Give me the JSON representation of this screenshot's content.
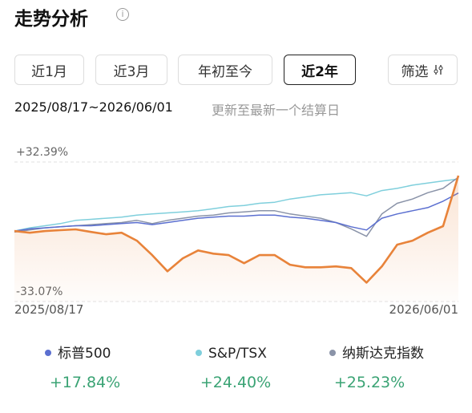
{
  "header": {
    "title": "走势分析"
  },
  "tabs": [
    {
      "label": "近1月"
    },
    {
      "label": "近3月"
    },
    {
      "label": "年初至今"
    },
    {
      "label": "近2年",
      "selected": true
    }
  ],
  "filter": {
    "label": "筛选"
  },
  "range": {
    "dates": "2025/08/17~2026/06/01",
    "note": "更新至最新一个结算日"
  },
  "chart_data": {
    "type": "line",
    "x_labels": [
      "2025/08/17",
      "2026/06/01"
    ],
    "ylim": [
      -33.07,
      32.39
    ],
    "yticks": [
      {
        "value": 32.39,
        "label": "+32.39%"
      },
      {
        "value": -33.07,
        "label": "-33.07%"
      }
    ],
    "grid": true,
    "series": [
      {
        "name": "标普500",
        "color": "#5b6fd0",
        "values": [
          0,
          1,
          1.5,
          2,
          2.5,
          2.5,
          3,
          3.5,
          4,
          3,
          4,
          5,
          6,
          6.5,
          7,
          7,
          7.5,
          7.5,
          6.5,
          6,
          5,
          4,
          2,
          0.5,
          6,
          8,
          9.5,
          11,
          14,
          17.84
        ]
      },
      {
        "name": "S&P/TSX",
        "color": "#7fcfdc",
        "values": [
          0,
          1.5,
          2.5,
          3.5,
          5,
          5.5,
          6,
          6.5,
          7.5,
          8,
          8.5,
          9,
          9.5,
          10.5,
          11.5,
          12,
          13,
          13.5,
          15,
          16,
          17,
          17.5,
          18,
          16.5,
          19,
          20,
          21.5,
          22.5,
          23.5,
          24.4
        ]
      },
      {
        "name": "纳斯达克指数",
        "color": "#8a93a8",
        "values": [
          -0.5,
          0.5,
          1.5,
          2,
          2.5,
          3,
          3.5,
          4,
          5,
          3.5,
          5,
          6,
          7,
          7.5,
          8.5,
          9,
          9.5,
          9.5,
          8,
          7,
          6,
          4,
          1,
          -2.5,
          8,
          13,
          15,
          18,
          20,
          25.23
        ]
      },
      {
        "color": "#e8833a",
        "values": [
          0,
          -0.8,
          0,
          0.4,
          0.8,
          -0.4,
          -1.5,
          -0.8,
          -4.5,
          -11.3,
          -18.9,
          -12.8,
          -9.1,
          -10.6,
          -11.3,
          -15.1,
          -11.3,
          -11.3,
          -15.8,
          -17,
          -17,
          -16.6,
          -17.4,
          -24.2,
          -16.6,
          -6.4,
          -4.5,
          -0.8,
          2.3,
          26
        ]
      }
    ],
    "legend_returns": {
      "values": [
        17.84,
        24.4,
        25.23
      ],
      "value_labels": [
        "+17.84%",
        "+24.40%",
        "+25.23%"
      ]
    }
  }
}
